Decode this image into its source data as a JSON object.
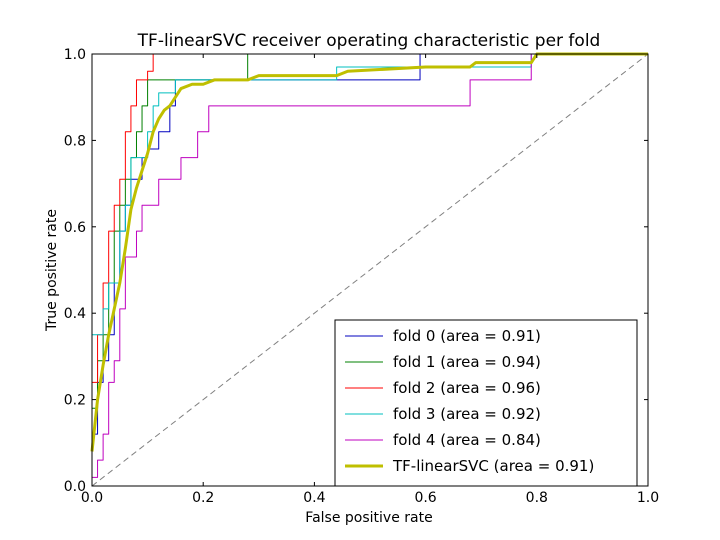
{
  "chart_data": {
    "type": "line",
    "title": "TF-linearSVC receiver operating characteristic per fold",
    "xlabel": "False positive rate",
    "ylabel": "True positive rate",
    "xlim": [
      0,
      1
    ],
    "ylim": [
      0,
      1
    ],
    "xticks": [
      "0.0",
      "0.2",
      "0.4",
      "0.6",
      "0.8",
      "1.0"
    ],
    "yticks": [
      "0.0",
      "0.2",
      "0.4",
      "0.6",
      "0.8",
      "1.0"
    ],
    "grid": false,
    "legend_position": "lower-right",
    "diagonal": {
      "x": [
        0,
        1
      ],
      "y": [
        0,
        1
      ],
      "color": "#808080",
      "style": "dashed"
    },
    "series": [
      {
        "name": "fold 0 (area = 0.91)",
        "color": "#0000bf",
        "width": 1,
        "x": [
          0,
          0,
          0.01,
          0.01,
          0.02,
          0.02,
          0.03,
          0.03,
          0.04,
          0.04,
          0.05,
          0.05,
          0.06,
          0.06,
          0.07,
          0.07,
          0.09,
          0.09,
          0.1,
          0.1,
          0.12,
          0.12,
          0.14,
          0.14,
          0.15,
          0.15,
          0.28,
          0.28,
          0.59,
          0.59,
          1
        ],
        "y": [
          0,
          0.12,
          0.12,
          0.24,
          0.24,
          0.29,
          0.29,
          0.35,
          0.35,
          0.47,
          0.47,
          0.59,
          0.59,
          0.65,
          0.65,
          0.71,
          0.71,
          0.76,
          0.76,
          0.78,
          0.78,
          0.82,
          0.82,
          0.88,
          0.88,
          0.94,
          0.94,
          0.94,
          0.94,
          1.0,
          1.0
        ]
      },
      {
        "name": "fold 1 (area = 0.94)",
        "color": "#008000",
        "width": 1,
        "x": [
          0,
          0,
          0.01,
          0.01,
          0.02,
          0.02,
          0.03,
          0.03,
          0.04,
          0.04,
          0.05,
          0.05,
          0.06,
          0.06,
          0.07,
          0.07,
          0.08,
          0.08,
          0.09,
          0.09,
          0.1,
          0.1,
          0.28,
          0.28,
          1
        ],
        "y": [
          0,
          0.18,
          0.18,
          0.29,
          0.29,
          0.35,
          0.35,
          0.47,
          0.47,
          0.59,
          0.59,
          0.65,
          0.65,
          0.71,
          0.71,
          0.76,
          0.76,
          0.82,
          0.82,
          0.88,
          0.88,
          0.94,
          0.94,
          1.0,
          1.0
        ]
      },
      {
        "name": "fold 2 (area = 0.96)",
        "color": "#ff0000",
        "width": 1,
        "x": [
          0,
          0,
          0.01,
          0.01,
          0.02,
          0.02,
          0.03,
          0.03,
          0.04,
          0.04,
          0.05,
          0.05,
          0.06,
          0.06,
          0.07,
          0.07,
          0.08,
          0.08,
          0.1,
          0.1,
          0.11,
          0.11,
          1
        ],
        "y": [
          0,
          0.24,
          0.24,
          0.35,
          0.35,
          0.47,
          0.47,
          0.59,
          0.59,
          0.65,
          0.65,
          0.71,
          0.71,
          0.82,
          0.82,
          0.88,
          0.88,
          0.94,
          0.94,
          0.96,
          0.96,
          1.0,
          1.0
        ]
      },
      {
        "name": "fold 3 (area = 0.92)",
        "color": "#00bfbf",
        "width": 1,
        "x": [
          0,
          0,
          0.02,
          0.02,
          0.03,
          0.03,
          0.05,
          0.05,
          0.06,
          0.06,
          0.07,
          0.07,
          0.1,
          0.1,
          0.11,
          0.11,
          0.12,
          0.12,
          0.15,
          0.15,
          0.44,
          0.44,
          0.79,
          0.79,
          1
        ],
        "y": [
          0,
          0.35,
          0.35,
          0.41,
          0.41,
          0.47,
          0.47,
          0.59,
          0.59,
          0.65,
          0.65,
          0.76,
          0.76,
          0.82,
          0.82,
          0.88,
          0.88,
          0.91,
          0.91,
          0.94,
          0.94,
          0.97,
          0.97,
          1.0,
          1.0
        ]
      },
      {
        "name": "fold 4 (area = 0.84)",
        "color": "#bf00bf",
        "width": 1,
        "x": [
          0,
          0.01,
          0.01,
          0.02,
          0.02,
          0.03,
          0.03,
          0.04,
          0.04,
          0.05,
          0.05,
          0.06,
          0.06,
          0.08,
          0.08,
          0.09,
          0.09,
          0.12,
          0.12,
          0.16,
          0.16,
          0.19,
          0.19,
          0.21,
          0.21,
          0.68,
          0.68,
          0.79,
          0.79,
          1
        ],
        "y": [
          0.02,
          0.02,
          0.06,
          0.06,
          0.12,
          0.12,
          0.24,
          0.24,
          0.29,
          0.29,
          0.41,
          0.41,
          0.53,
          0.53,
          0.59,
          0.59,
          0.65,
          0.65,
          0.71,
          0.71,
          0.76,
          0.76,
          0.82,
          0.82,
          0.88,
          0.88,
          0.94,
          0.94,
          1.0,
          1.0
        ]
      },
      {
        "name": "TF-linearSVC (area = 0.91)",
        "color": "#bfbf00",
        "width": 3,
        "x": [
          0,
          0.01,
          0.02,
          0.03,
          0.04,
          0.05,
          0.06,
          0.07,
          0.08,
          0.09,
          0.1,
          0.11,
          0.12,
          0.13,
          0.14,
          0.15,
          0.16,
          0.18,
          0.2,
          0.22,
          0.28,
          0.3,
          0.44,
          0.46,
          0.6,
          0.68,
          0.69,
          0.79,
          0.8,
          1.0
        ],
        "y": [
          0.08,
          0.2,
          0.28,
          0.35,
          0.41,
          0.47,
          0.55,
          0.64,
          0.69,
          0.73,
          0.77,
          0.82,
          0.85,
          0.87,
          0.88,
          0.9,
          0.92,
          0.93,
          0.93,
          0.94,
          0.94,
          0.95,
          0.95,
          0.96,
          0.97,
          0.97,
          0.98,
          0.98,
          1.0,
          1.0
        ]
      }
    ]
  }
}
